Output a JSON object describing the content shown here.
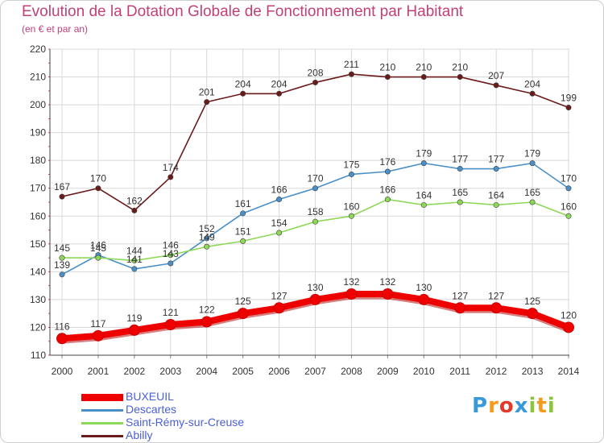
{
  "title": "Evolution de la Dotation Globale de Fonctionnement par Habitant",
  "subtitle": "(en € et par an)",
  "logo": {
    "text": "Proxiti",
    "letters": [
      {
        "ch": "P",
        "color": "#3a9ad9"
      },
      {
        "ch": "r",
        "color": "#f59a1a"
      },
      {
        "ch": "o",
        "color": "#e23a2a"
      },
      {
        "ch": "x",
        "color": "#3a9ad9"
      },
      {
        "ch": "i",
        "color": "#8cc43c"
      },
      {
        "ch": "t",
        "color": "#f59a1a"
      },
      {
        "ch": "i",
        "color": "#8cc43c"
      }
    ]
  },
  "chart_data": {
    "type": "line",
    "title": "Evolution de la Dotation Globale de Fonctionnement par Habitant",
    "subtitle": "(en € et par an)",
    "x": [
      2000,
      2001,
      2002,
      2003,
      2004,
      2005,
      2006,
      2007,
      2008,
      2009,
      2010,
      2011,
      2012,
      2013,
      2014
    ],
    "ylim": [
      110,
      220
    ],
    "yticks": [
      110,
      120,
      130,
      140,
      150,
      160,
      170,
      180,
      190,
      200,
      210,
      220
    ],
    "grid": true,
    "legend": "bottom-left",
    "series": [
      {
        "name": "Abilly",
        "color": "#6b1a1a",
        "values": [
          167,
          170,
          162,
          174,
          201,
          204,
          204,
          208,
          211,
          210,
          210,
          210,
          207,
          204,
          199
        ]
      },
      {
        "name": "Descartes",
        "color": "#4a90c8",
        "values": [
          139,
          146,
          141,
          143,
          152,
          161,
          166,
          170,
          175,
          176,
          179,
          177,
          177,
          179,
          170
        ]
      },
      {
        "name": "Saint-Rémy-sur-Creuse",
        "color": "#8ed858",
        "values": [
          145,
          145,
          144,
          146,
          149,
          151,
          154,
          158,
          160,
          166,
          164,
          165,
          164,
          165,
          160
        ]
      },
      {
        "name": "BUXEUIL",
        "color": "#ee0000",
        "values": [
          116,
          117,
          119,
          121,
          122,
          125,
          127,
          130,
          132,
          132,
          130,
          127,
          127,
          125,
          120
        ]
      }
    ]
  },
  "legend": [
    {
      "name": "BUXEUIL",
      "color": "#ee0000",
      "thickness": 9
    },
    {
      "name": "Descartes",
      "color": "#4a90c8",
      "thickness": 3
    },
    {
      "name": "Saint-Rémy-sur-Creuse",
      "color": "#8ed858",
      "thickness": 3
    },
    {
      "name": "Abilly",
      "color": "#6b1a1a",
      "thickness": 3
    }
  ]
}
